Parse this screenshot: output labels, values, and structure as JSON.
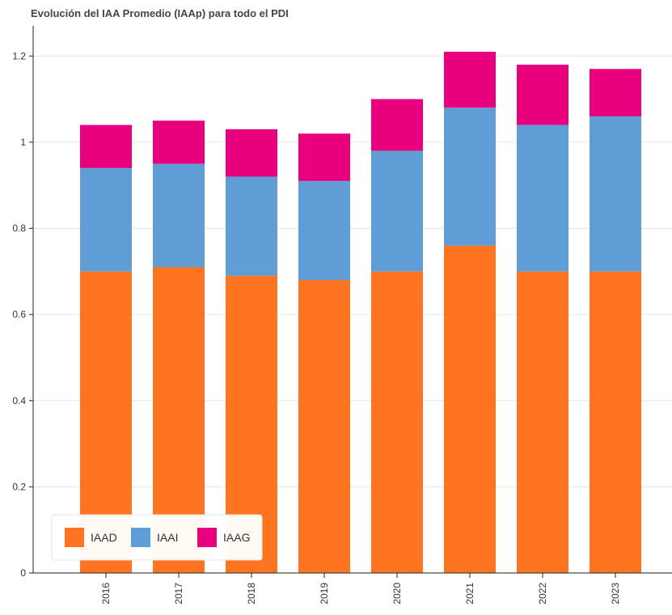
{
  "chart_data": {
    "type": "bar",
    "stacked": true,
    "title": "Evolución del IAA Promedio (IAAp) para todo el PDI",
    "xlabel": "",
    "ylabel": "",
    "categories": [
      "2016",
      "2017",
      "2018",
      "2019",
      "2020",
      "2021",
      "2022",
      "2023"
    ],
    "series": [
      {
        "name": "IAAD",
        "color": "#ff7420",
        "values": [
          0.7,
          0.71,
          0.69,
          0.68,
          0.7,
          0.76,
          0.7,
          0.7
        ]
      },
      {
        "name": "IAAI",
        "color": "#5f9dd6",
        "values": [
          0.24,
          0.24,
          0.23,
          0.23,
          0.28,
          0.32,
          0.34,
          0.36
        ]
      },
      {
        "name": "IAAG",
        "color": "#e8007f",
        "values": [
          0.1,
          0.1,
          0.11,
          0.11,
          0.12,
          0.13,
          0.14,
          0.11
        ]
      }
    ],
    "ylim": [
      0,
      1.27
    ],
    "yticks": [
      0,
      0.2,
      0.4,
      0.6,
      0.8,
      1,
      1.2
    ],
    "ytick_labels": [
      "0",
      "0.2",
      "0.4",
      "0.6",
      "0.8",
      "1",
      "1.2"
    ],
    "grid": true,
    "legend_position": "bottom-left"
  }
}
